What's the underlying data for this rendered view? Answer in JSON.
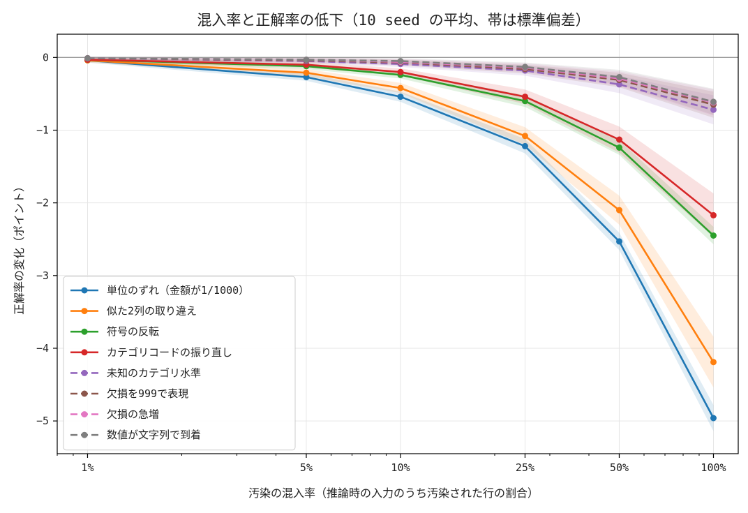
{
  "chart_data": {
    "type": "line",
    "title": "混入率と正解率の低下（10 seed の平均、帯は標準偏差）",
    "xlabel": "汚染の混入率（推論時の入力のうち汚染された行の割合）",
    "ylabel": "正解率の変化（ポイント）",
    "x_scale": "log",
    "x": [
      1,
      5,
      10,
      25,
      50,
      100
    ],
    "x_tick_labels": [
      "1%",
      "5%",
      "10%",
      "25%",
      "50%",
      "100%"
    ],
    "xlim": [
      0.8,
      120
    ],
    "ylim": [
      -5.45,
      0.32
    ],
    "y_ticks": [
      0,
      -1,
      -2,
      -3,
      -4,
      -5
    ],
    "y_tick_labels": [
      "0",
      "−1",
      "−2",
      "−3",
      "−4",
      "−5"
    ],
    "grid": true,
    "reference_line_y": 0,
    "legend_position": "lower-left",
    "series": [
      {
        "name": "単位のずれ（金額が1/1000）",
        "color": "#1f77b4",
        "dashed": false,
        "values": [
          -0.04,
          -0.27,
          -0.54,
          -1.22,
          -2.53,
          -4.96
        ],
        "std": [
          0.03,
          0.05,
          0.07,
          0.1,
          0.12,
          0.18
        ]
      },
      {
        "name": "似た2列の取り違え",
        "color": "#ff7f0e",
        "dashed": false,
        "values": [
          -0.04,
          -0.21,
          -0.42,
          -1.08,
          -2.1,
          -4.19
        ],
        "std": [
          0.03,
          0.05,
          0.07,
          0.12,
          0.2,
          0.35
        ]
      },
      {
        "name": "符号の反転",
        "color": "#2ca02c",
        "dashed": false,
        "values": [
          -0.03,
          -0.12,
          -0.24,
          -0.6,
          -1.24,
          -2.45
        ],
        "std": [
          0.03,
          0.04,
          0.05,
          0.08,
          0.1,
          0.12
        ]
      },
      {
        "name": "カテゴリコードの振り直し",
        "color": "#d62728",
        "dashed": false,
        "values": [
          -0.03,
          -0.1,
          -0.2,
          -0.54,
          -1.13,
          -2.17
        ],
        "std": [
          0.03,
          0.04,
          0.05,
          0.1,
          0.18,
          0.3
        ]
      },
      {
        "name": "未知のカテゴリ水準",
        "color": "#9467bd",
        "dashed": true,
        "values": [
          -0.01,
          -0.05,
          -0.09,
          -0.18,
          -0.37,
          -0.72
        ],
        "std": [
          0.02,
          0.03,
          0.04,
          0.07,
          0.12,
          0.2
        ]
      },
      {
        "name": "欠損を999で表現",
        "color": "#8c564b",
        "dashed": true,
        "values": [
          -0.01,
          -0.04,
          -0.07,
          -0.16,
          -0.31,
          -0.65
        ],
        "std": [
          0.02,
          0.03,
          0.04,
          0.06,
          0.1,
          0.18
        ]
      },
      {
        "name": "欠損の急増",
        "color": "#e377c2",
        "dashed": true,
        "values": [
          -0.01,
          -0.03,
          -0.06,
          -0.14,
          -0.29,
          -0.62
        ],
        "std": [
          0.02,
          0.03,
          0.04,
          0.06,
          0.1,
          0.18
        ]
      },
      {
        "name": "数値が文字列で到着",
        "color": "#7f7f7f",
        "dashed": true,
        "values": [
          -0.01,
          -0.03,
          -0.05,
          -0.13,
          -0.27,
          -0.61
        ],
        "std": [
          0.02,
          0.03,
          0.04,
          0.06,
          0.1,
          0.18
        ]
      }
    ]
  }
}
